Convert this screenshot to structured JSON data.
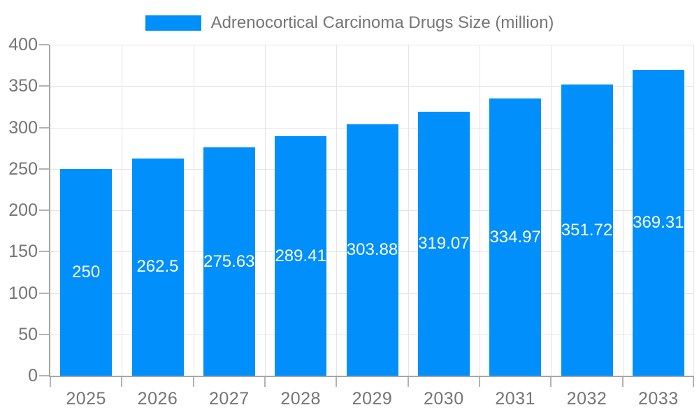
{
  "colors": {
    "bar": "#008FFB",
    "axis_text": "#757575",
    "axis_line": "#a6a6a6",
    "tick": "#b3b3b3",
    "gridline": "#e4e4e4",
    "background": "#ffffff",
    "value_label": "#ffffff"
  },
  "chart_data": {
    "type": "bar",
    "title": "Adrenocortical Carcinoma Drugs Size (million)",
    "categories": [
      "2025",
      "2026",
      "2027",
      "2028",
      "2029",
      "2030",
      "2031",
      "2032",
      "2033"
    ],
    "series": [
      {
        "name": "Adrenocortical Carcinoma Drugs Size (million)",
        "color": "#008FFB",
        "values": [
          250,
          262.5,
          275.63,
          289.41,
          303.88,
          319.07,
          334.97,
          351.72,
          369.31
        ],
        "value_labels": [
          "250",
          "262.5",
          "275.63",
          "289.41",
          "303.88",
          "319.07",
          "334.97",
          "351.72",
          "369.31"
        ]
      }
    ],
    "xlabel": "",
    "ylabel": "",
    "ylim": [
      0,
      400
    ],
    "yticks": [
      0,
      50,
      100,
      150,
      200,
      250,
      300,
      350,
      400
    ],
    "grid": true,
    "legend_position": "top",
    "value_label_position": "bar-center"
  }
}
